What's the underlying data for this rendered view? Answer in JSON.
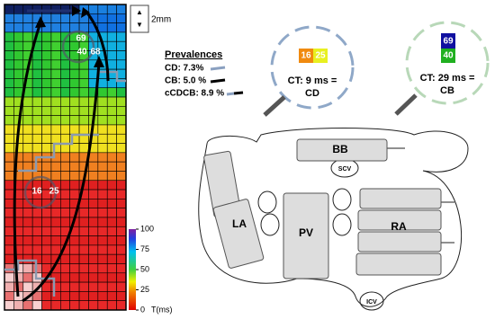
{
  "scale_bar": "2mm",
  "map_labels": [
    "69",
    "40",
    "68",
    "16",
    "25"
  ],
  "prevalences": {
    "title": "Prevalences",
    "items": [
      "CD: 7.3%",
      "CB: 5.0 %",
      "cCDCB: 8.9 %"
    ]
  },
  "magnifiers": [
    {
      "values": [
        "16",
        "25"
      ],
      "line1": "CT: 9 ms =",
      "line2": "CD"
    },
    {
      "values": [
        "69",
        "40"
      ],
      "line1": "CT: 29 ms =",
      "line2": "CB"
    }
  ],
  "colorbar": {
    "ticks": [
      100,
      75,
      50,
      25,
      0
    ],
    "unit": "T(ms)"
  },
  "atlas": {
    "labels": [
      "BB",
      "SCV",
      "LA",
      "PV",
      "RA",
      "ICV"
    ]
  }
}
